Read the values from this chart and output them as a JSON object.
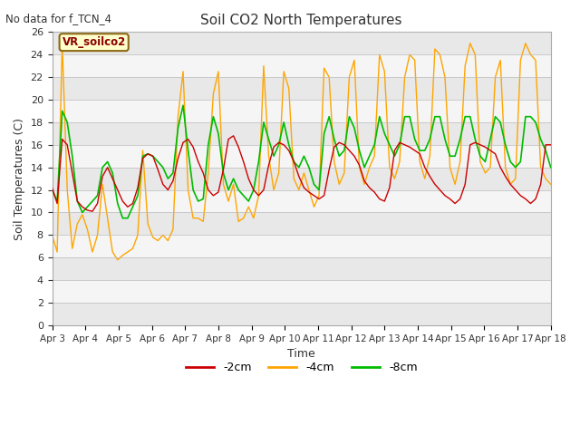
{
  "title": "Soil CO2 North Temperatures",
  "no_data_label": "No data for f_TCN_4",
  "station_label": "VR_soilco2",
  "ylabel": "Soil Temperatures (C)",
  "xlabel": "Time",
  "ylim": [
    0,
    26
  ],
  "yticks": [
    0,
    2,
    4,
    6,
    8,
    10,
    12,
    14,
    16,
    18,
    20,
    22,
    24,
    26
  ],
  "fig_bg": "#ffffff",
  "plot_bg_odd": "#e8e8e8",
  "plot_bg_even": "#f5f5f5",
  "line_colors": {
    "2cm": "#cc0000",
    "4cm": "#ffa500",
    "8cm": "#00bb00"
  },
  "legend_entries": [
    "-2cm",
    "-4cm",
    "-8cm"
  ],
  "xtick_labels": [
    "Apr 3",
    "Apr 4",
    "Apr 5",
    "Apr 6",
    "Apr 7",
    "Apr 8",
    "Apr 9",
    "Apr 10",
    "Apr 11",
    "Apr 12",
    "Apr 13",
    "Apr 14",
    "Apr 15",
    "Apr 16",
    "Apr 17",
    "Apr 18"
  ],
  "t_2cm": [
    12.2,
    10.8,
    16.5,
    16.0,
    13.5,
    11.0,
    10.5,
    10.2,
    10.1,
    10.8,
    13.2,
    14.0,
    13.0,
    12.0,
    11.0,
    10.5,
    10.8,
    12.2,
    14.8,
    15.2,
    15.0,
    13.8,
    12.5,
    12.0,
    12.8,
    14.8,
    16.2,
    16.5,
    15.8,
    14.5,
    13.5,
    12.0,
    11.5,
    11.8,
    13.8,
    16.5,
    16.8,
    15.8,
    14.5,
    13.0,
    12.0,
    11.5,
    12.0,
    14.2,
    15.8,
    16.2,
    16.0,
    15.5,
    14.5,
    13.2,
    12.2,
    11.8,
    11.5,
    11.2,
    11.5,
    13.8,
    15.8,
    16.2,
    16.0,
    15.5,
    15.0,
    14.2,
    12.8,
    12.2,
    11.8,
    11.2,
    11.0,
    12.2,
    15.5,
    16.2,
    16.0,
    15.8,
    15.5,
    15.2,
    14.0,
    13.2,
    12.5,
    12.0,
    11.5,
    11.2,
    10.8,
    11.2,
    12.5,
    16.0,
    16.2,
    16.0,
    15.8,
    15.5,
    15.2,
    14.0,
    13.2,
    12.5,
    12.0,
    11.5,
    11.2,
    10.8,
    11.2,
    12.5,
    16.0,
    16.0
  ],
  "t_4cm": [
    8.0,
    6.5,
    25.0,
    12.0,
    6.8,
    9.0,
    9.8,
    8.5,
    6.5,
    8.0,
    12.5,
    9.5,
    6.5,
    5.8,
    6.2,
    6.5,
    6.8,
    8.0,
    15.5,
    9.0,
    7.8,
    7.5,
    8.0,
    7.5,
    8.5,
    18.5,
    22.5,
    12.0,
    9.5,
    9.5,
    9.2,
    13.5,
    20.5,
    22.5,
    12.5,
    11.0,
    12.5,
    9.2,
    9.5,
    10.5,
    9.5,
    11.5,
    23.0,
    15.0,
    12.0,
    13.5,
    22.5,
    21.0,
    13.0,
    12.0,
    13.5,
    12.0,
    10.5,
    11.5,
    22.8,
    22.0,
    14.5,
    12.5,
    13.5,
    22.0,
    23.5,
    14.0,
    12.5,
    14.0,
    15.0,
    24.0,
    22.5,
    14.0,
    13.0,
    14.5,
    22.0,
    24.0,
    23.5,
    14.5,
    13.0,
    15.0,
    24.5,
    24.0,
    22.0,
    14.0,
    12.5,
    14.5,
    23.0,
    25.0,
    24.0,
    14.5,
    13.5,
    14.0,
    22.0,
    23.5,
    14.0,
    12.5,
    13.0,
    23.5,
    25.0,
    24.0,
    23.5,
    14.0,
    13.0,
    12.5
  ],
  "t_8cm": [
    12.0,
    11.0,
    19.0,
    18.0,
    15.0,
    11.0,
    10.0,
    10.5,
    11.0,
    11.5,
    14.0,
    14.5,
    13.5,
    10.8,
    9.5,
    9.5,
    10.5,
    11.5,
    15.0,
    15.2,
    15.0,
    14.5,
    14.0,
    13.0,
    13.5,
    17.5,
    19.5,
    15.5,
    12.0,
    11.0,
    11.2,
    16.0,
    18.5,
    17.0,
    13.5,
    12.0,
    13.0,
    12.0,
    11.5,
    11.0,
    12.0,
    14.5,
    18.0,
    16.5,
    15.0,
    16.0,
    18.0,
    16.0,
    14.5,
    14.0,
    15.0,
    14.0,
    12.5,
    12.0,
    17.0,
    18.5,
    16.5,
    15.0,
    15.5,
    18.5,
    17.5,
    15.5,
    14.0,
    15.0,
    16.0,
    18.5,
    17.0,
    16.0,
    15.0,
    16.0,
    18.5,
    18.5,
    16.5,
    15.5,
    15.5,
    16.5,
    18.5,
    18.5,
    16.5,
    15.0,
    15.0,
    16.5,
    18.5,
    18.5,
    16.5,
    15.0,
    14.5,
    16.5,
    18.5,
    18.0,
    16.0,
    14.5,
    14.0,
    14.5,
    18.5,
    18.5,
    18.0,
    16.5,
    15.5,
    14.0
  ]
}
